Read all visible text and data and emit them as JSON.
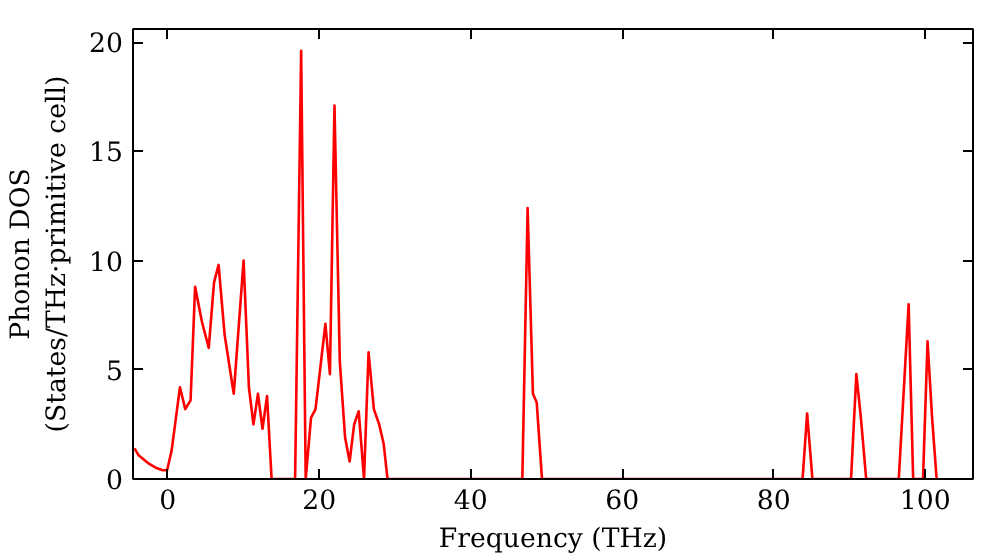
{
  "chart_data": {
    "type": "line",
    "xlabel": "Frequency (THz)",
    "ylabel": "Phonon DOS\n(States/THz·primitive cell)",
    "xlim": [
      -4.6,
      106.3
    ],
    "ylim": [
      0,
      20.6
    ],
    "xticks": [
      0,
      20,
      40,
      60,
      80,
      100
    ],
    "yticks": [
      0,
      5,
      10,
      15,
      20
    ],
    "grid": false,
    "marker": "none",
    "line_style": "solid",
    "series": [
      {
        "color": "#ff0000",
        "x": [
          -4.4,
          -3.9,
          -2.5,
          -1.5,
          -0.7,
          -0.1,
          0.5,
          1.6,
          2.3,
          3.0,
          3.6,
          4.5,
          5.4,
          6.1,
          6.7,
          7.5,
          8.7,
          10.0,
          10.7,
          11.3,
          11.9,
          12.5,
          13.1,
          13.7,
          16.8,
          17.6,
          18.2,
          18.9,
          19.5,
          20.8,
          21.4,
          22.0,
          22.7,
          23.4,
          24.0,
          24.6,
          25.2,
          25.9,
          26.5,
          27.2,
          27.9,
          28.5,
          29.0,
          46.8,
          47.5,
          48.2,
          48.7,
          49.4,
          83.8,
          84.4,
          85.1,
          90.2,
          90.9,
          91.5,
          92.2,
          96.5,
          97.8,
          98.4,
          99.7,
          100.3,
          100.9,
          101.5
        ],
        "values": [
          1.4,
          1.1,
          0.7,
          0.5,
          0.4,
          0.4,
          1.3,
          4.2,
          3.2,
          3.6,
          8.8,
          7.2,
          6.0,
          9.0,
          9.8,
          6.6,
          3.9,
          10.0,
          4.2,
          2.5,
          3.9,
          2.3,
          3.8,
          0,
          0,
          19.6,
          0,
          2.8,
          3.2,
          7.1,
          4.8,
          17.1,
          5.4,
          1.9,
          0.8,
          2.5,
          3.1,
          0,
          5.8,
          3.2,
          2.5,
          1.6,
          0,
          0,
          12.4,
          3.9,
          3.5,
          0,
          0,
          3.0,
          0,
          0,
          4.8,
          2.8,
          0,
          0,
          8.0,
          0,
          0,
          6.3,
          2.8,
          0
        ]
      }
    ]
  }
}
